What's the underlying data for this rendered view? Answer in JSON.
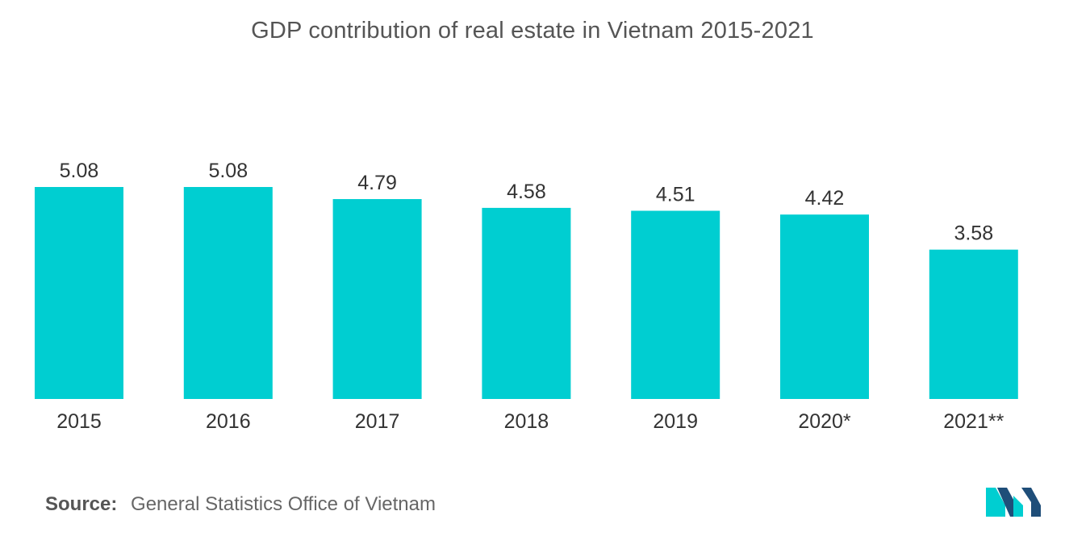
{
  "chart_data": {
    "type": "bar",
    "title": "GDP contribution of real estate in Vietnam 2015-2021",
    "categories": [
      "2015",
      "2016",
      "2017",
      "2018",
      "2019",
      "2020*",
      "2021**"
    ],
    "values": [
      5.08,
      5.08,
      4.79,
      4.58,
      4.51,
      4.42,
      3.58
    ],
    "data_labels": [
      "5.08",
      "5.08",
      "4.79",
      "4.58",
      "4.51",
      "4.42",
      "3.58"
    ],
    "xlabel": "",
    "ylabel": "",
    "ylim": [
      0,
      5.08
    ],
    "grid": false,
    "legend": "none",
    "bar_color": "#00CED1"
  },
  "source": {
    "label": "Source:",
    "text": "General Statistics Office of Vietnam"
  },
  "logo": {
    "icon": "mordor-intelligence-logo-icon",
    "colors": [
      "#00CED1",
      "#1F4E79"
    ]
  }
}
